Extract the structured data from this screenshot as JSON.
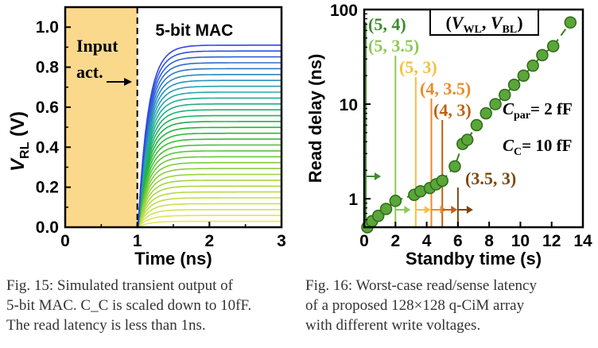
{
  "figure15": {
    "chart_data": {
      "type": "line",
      "ylabel_main": "V",
      "ylabel_sub": "RL",
      "ylabel_unit": " (V)",
      "xlabel": "Time (ns)",
      "xlim": [
        0,
        3
      ],
      "ylim": [
        0,
        1.1
      ],
      "x_ticks": [
        0,
        1,
        2,
        3
      ],
      "y_ticks": [
        0.0,
        0.2,
        0.4,
        0.6,
        0.8,
        1.0
      ],
      "x_tick_labels": [
        "0",
        "1",
        "2",
        "3"
      ],
      "y_tick_labels": [
        "0.0",
        "0.2",
        "0.4",
        "0.6",
        "0.8",
        "1.0"
      ],
      "input_activation_end": 1.0,
      "curve_count": 32,
      "final_values_range": [
        0.0,
        0.91
      ],
      "label_mac": "5-bit MAC",
      "label_input_line1": "Input",
      "label_input_line2": "act."
    },
    "caption": [
      "Fig. 15: Simulated transient output of",
      "5-bit MAC. C_C is scaled down to 10fF.",
      "The read latency is less than 1ns."
    ]
  },
  "figure16": {
    "chart_data": {
      "type": "scatter",
      "ylabel": "Read delay (ns)",
      "xlabel": "Standby time (s)",
      "xlim": [
        0,
        14
      ],
      "ylim": [
        0.5,
        100
      ],
      "yscale": "log",
      "x_ticks": [
        0,
        2,
        4,
        6,
        8,
        10,
        12,
        14
      ],
      "x_tick_labels": [
        "0",
        "2",
        "4",
        "6",
        "8",
        "10",
        "12",
        "14"
      ],
      "y_ticks": [
        1,
        10,
        100
      ],
      "y_tick_labels": [
        "1",
        "10",
        "100"
      ],
      "series": [
        {
          "x": [
            0.2,
            0.5,
            0.9,
            1.4,
            2.0,
            3.2,
            3.6,
            4.2,
            4.6,
            5.0,
            5.8,
            6.3,
            6.6,
            7.2,
            7.8,
            8.4,
            9.0,
            9.6,
            10.2,
            10.8,
            11.4,
            12.1,
            13.2
          ],
          "y": [
            0.5,
            0.58,
            0.66,
            0.78,
            0.95,
            1.1,
            1.2,
            1.3,
            1.42,
            1.55,
            2.2,
            3.8,
            4.2,
            6.0,
            8.0,
            10.0,
            12.5,
            16.0,
            20.0,
            25.5,
            33.0,
            41.0,
            73.0
          ]
        }
      ],
      "annotations": [
        {
          "label": "(5, 4)",
          "x": 0.1,
          "color": "#3c8c2e"
        },
        {
          "label": "(5, 3.5)",
          "x": 2.0,
          "color": "#90c855"
        },
        {
          "label": "(5, 3)",
          "x": 3.3,
          "color": "#f5c040"
        },
        {
          "label": "(4, 3.5)",
          "x": 4.3,
          "color": "#ec8a2a"
        },
        {
          "label": "(4, 3)",
          "x": 5.0,
          "color": "#c0600f"
        },
        {
          "label": "(3.5, 3)",
          "x": 6.0,
          "color": "#7a4810"
        }
      ],
      "legend_title": "(V_WL, V_BL)",
      "param_cpar": "= 2 fF",
      "param_cc": "= 10 fF"
    },
    "caption": [
      "Fig. 16: Worst-case read/sense latency",
      "of a proposed 128×128 q-CiM array",
      "with different write voltages."
    ]
  },
  "colors": {
    "input_region": "#fbd98c",
    "green_dark": "#3a7d1c",
    "dot_fill": "#5aa63a",
    "dot_stroke": "#2f6b18"
  }
}
